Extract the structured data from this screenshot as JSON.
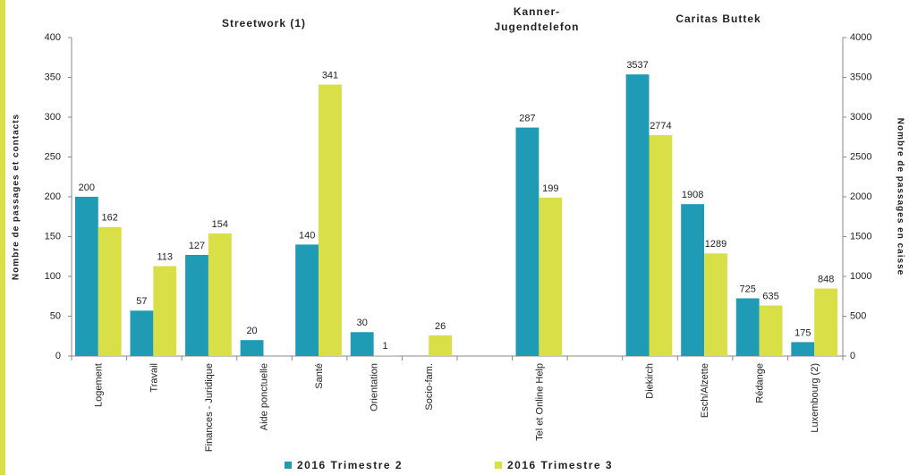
{
  "chart_data": {
    "type": "bar",
    "annotations": [
      "Streetwork (1)",
      [
        "Kanner-",
        "Jugendtelefon"
      ],
      "Caritas Buttek"
    ],
    "ylabel": "Nombre de passages et contacts",
    "y2label": "Nombre de passages en caisse",
    "categories": [
      "Logement",
      "Travail",
      "Finances - Juridique",
      "Aide ponctuelle",
      "Santé",
      "Orientation",
      "Socio-fam.",
      null,
      "Tel et Online Help",
      null,
      "Diekirch",
      "Esch/Alzette",
      "Rédange",
      "Luxembourg (2)"
    ],
    "series": [
      {
        "name": "2016 Trimestre 2",
        "color": "#1f9bb6",
        "axis": "y",
        "values": [
          200,
          57,
          127,
          20,
          140,
          30,
          null,
          null,
          287,
          null,
          null,
          null,
          null,
          null
        ]
      },
      {
        "name": "2016 Trimestre 3",
        "color": "#d8df47",
        "axis": "y",
        "values": [
          162,
          113,
          154,
          null,
          341,
          1,
          26,
          null,
          199,
          null,
          null,
          null,
          null,
          null
        ]
      },
      {
        "name": "2016 Trimestre 2",
        "color": "#1f9bb6",
        "axis": "y2",
        "values": [
          null,
          null,
          null,
          null,
          null,
          null,
          null,
          null,
          null,
          null,
          3537,
          1908,
          725,
          175
        ]
      },
      {
        "name": "2016 Trimestre 3",
        "color": "#d8df47",
        "axis": "y2",
        "values": [
          null,
          null,
          null,
          null,
          null,
          null,
          null,
          null,
          null,
          null,
          2774,
          1289,
          635,
          848
        ]
      }
    ],
    "ylim": [
      0,
      400
    ],
    "yticks": [
      0,
      50,
      100,
      150,
      200,
      250,
      300,
      350,
      400
    ],
    "y2lim": [
      0,
      4000
    ],
    "y2ticks": [
      0,
      500,
      1000,
      1500,
      2000,
      2500,
      3000,
      3500,
      4000
    ],
    "grid": false,
    "legend": "bottom"
  }
}
